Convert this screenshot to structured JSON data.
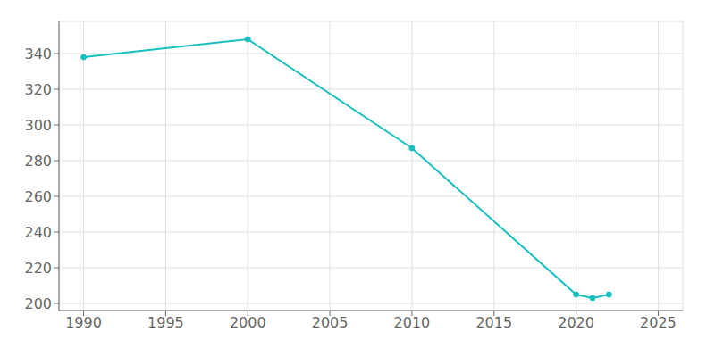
{
  "chart_data": {
    "type": "line",
    "x": [
      1990,
      2000,
      2010,
      2020,
      2021,
      2022
    ],
    "values": [
      338,
      348,
      287,
      205,
      203,
      205
    ],
    "color": "#18bfbf",
    "marker": "circle",
    "xlim": [
      1988.5,
      2026.5
    ],
    "ylim": [
      196,
      358
    ],
    "xticks": [
      1990,
      1995,
      2000,
      2005,
      2010,
      2015,
      2020,
      2025
    ],
    "yticks": [
      200,
      220,
      240,
      260,
      280,
      300,
      320,
      340
    ],
    "grid": true
  }
}
